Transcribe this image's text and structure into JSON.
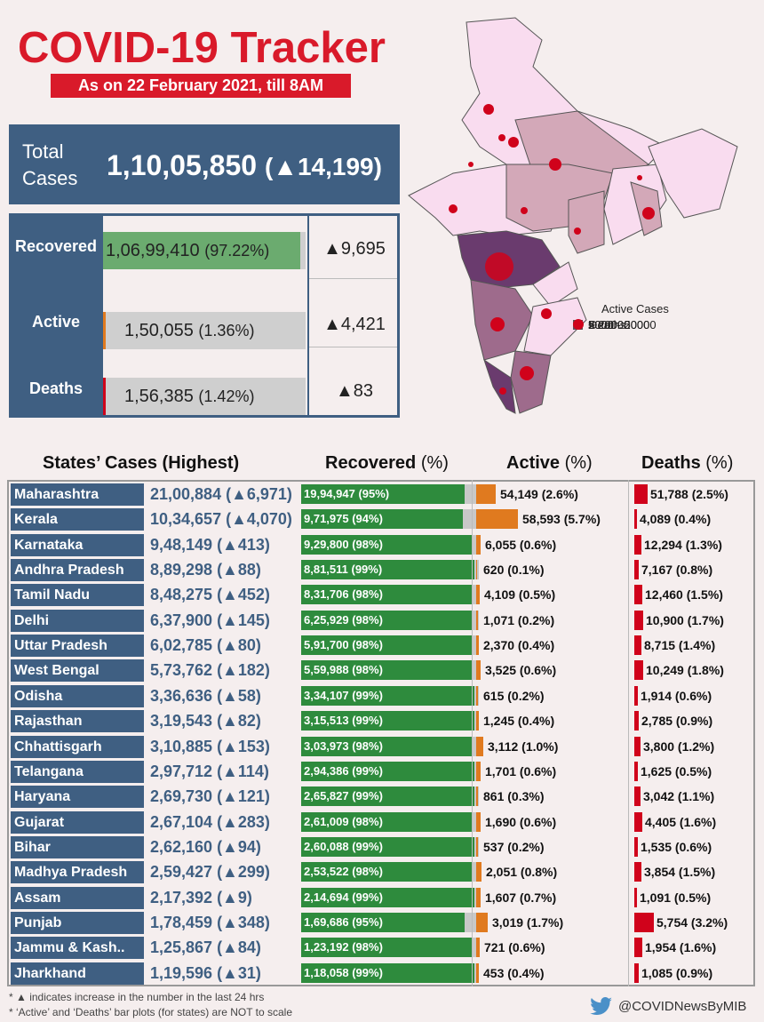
{
  "title": "COVID-19 Tracker",
  "date": "As on 22 February 2021, till 8AM",
  "total": {
    "label": "Total Cases",
    "value": "1,10,05,850",
    "delta": "(▲14,199)"
  },
  "summary": [
    {
      "label": "Recovered",
      "value": "1,06,99,410",
      "pct": "(97.22%)",
      "delta": "▲9,695",
      "color": "#6bab6f",
      "fill": 0.9722
    },
    {
      "label": "Active",
      "value": "1,50,055",
      "pct": "(1.36%)",
      "delta": "▲4,421",
      "color": "#e07a1f",
      "fill": 0.0136
    },
    {
      "label": "Deaths",
      "value": "1,56,385",
      "pct": "(1.42%)",
      "delta": "▲83",
      "color": "#d0021b",
      "fill": 0.0142
    }
  ],
  "legend": {
    "title": "Active Cases",
    "items": [
      {
        "label": "< 2000",
        "color": "#f9dcef"
      },
      {
        "label": "2000 - 5000",
        "color": "#d3a8b8"
      },
      {
        "label": "5000 - 20000",
        "color": "#9e6b8c"
      },
      {
        "label": "> 20000",
        "color": "#6a3b6e"
      }
    ],
    "deaths_label": "Deaths"
  },
  "headers": {
    "states": "States’ Cases (Highest)",
    "recovered": "Recovered",
    "active": "Active",
    "deaths": "Deaths",
    "pct": "(%)"
  },
  "states": [
    {
      "name": "Maharashtra",
      "cases": "21,00,884 (▲6,971)",
      "rec": "19,94,947 (95%)",
      "rec_pct": 95,
      "act": "54,149 (2.6%)",
      "act_w": 22,
      "dth": "51,788 (2.5%)",
      "dth_w": 15
    },
    {
      "name": "Kerala",
      "cases": "10,34,657 (▲4,070)",
      "rec": "9,71,975 (94%)",
      "rec_pct": 94,
      "act": "58,593 (5.7%)",
      "act_w": 47,
      "dth": "4,089 (0.4%)",
      "dth_w": 3
    },
    {
      "name": "Karnataka",
      "cases": "9,48,149 (▲413)",
      "rec": "9,29,800 (98%)",
      "rec_pct": 98,
      "act": "6,055 (0.6%)",
      "act_w": 5,
      "dth": "12,294 (1.3%)",
      "dth_w": 8
    },
    {
      "name": "Andhra Pradesh",
      "cases": "8,89,298 (▲88)",
      "rec": "8,81,511 (99%)",
      "rec_pct": 99,
      "act": "620 (0.1%)",
      "act_w": 1,
      "dth": "7,167 (0.8%)",
      "dth_w": 5
    },
    {
      "name": "Tamil Nadu",
      "cases": "8,48,275 (▲452)",
      "rec": "8,31,706 (98%)",
      "rec_pct": 98,
      "act": "4,109 (0.5%)",
      "act_w": 4,
      "dth": "12,460 (1.5%)",
      "dth_w": 9
    },
    {
      "name": "Delhi",
      "cases": "6,37,900 (▲145)",
      "rec": "6,25,929 (98%)",
      "rec_pct": 98,
      "act": "1,071 (0.2%)",
      "act_w": 2,
      "dth": "10,900 (1.7%)",
      "dth_w": 10
    },
    {
      "name": "Uttar Pradesh",
      "cases": "6,02,785 (▲80)",
      "rec": "5,91,700 (98%)",
      "rec_pct": 98,
      "act": "2,370 (0.4%)",
      "act_w": 3,
      "dth": "8,715 (1.4%)",
      "dth_w": 8
    },
    {
      "name": "West Bengal",
      "cases": "5,73,762 (▲182)",
      "rec": "5,59,988 (98%)",
      "rec_pct": 98,
      "act": "3,525 (0.6%)",
      "act_w": 5,
      "dth": "10,249 (1.8%)",
      "dth_w": 10
    },
    {
      "name": "Odisha",
      "cases": "3,36,636 (▲58)",
      "rec": "3,34,107 (99%)",
      "rec_pct": 99,
      "act": "615 (0.2%)",
      "act_w": 2,
      "dth": "1,914 (0.6%)",
      "dth_w": 4
    },
    {
      "name": "Rajasthan",
      "cases": "3,19,543 (▲82)",
      "rec": "3,15,513 (99%)",
      "rec_pct": 99,
      "act": "1,245 (0.4%)",
      "act_w": 3,
      "dth": "2,785 (0.9%)",
      "dth_w": 5
    },
    {
      "name": "Chhattisgarh",
      "cases": "3,10,885 (▲153)",
      "rec": "3,03,973 (98%)",
      "rec_pct": 98,
      "act": "3,112 (1.0%)",
      "act_w": 8,
      "dth": "3,800 (1.2%)",
      "dth_w": 7
    },
    {
      "name": "Telangana",
      "cases": "2,97,712 (▲114)",
      "rec": "2,94,386 (99%)",
      "rec_pct": 99,
      "act": "1,701 (0.6%)",
      "act_w": 5,
      "dth": "1,625 (0.5%)",
      "dth_w": 4
    },
    {
      "name": "Haryana",
      "cases": "2,69,730 (▲121)",
      "rec": "2,65,827 (99%)",
      "rec_pct": 99,
      "act": "861 (0.3%)",
      "act_w": 2,
      "dth": "3,042 (1.1%)",
      "dth_w": 7
    },
    {
      "name": "Gujarat",
      "cases": "2,67,104 (▲283)",
      "rec": "2,61,009 (98%)",
      "rec_pct": 98,
      "act": "1,690 (0.6%)",
      "act_w": 5,
      "dth": "4,405 (1.6%)",
      "dth_w": 9
    },
    {
      "name": "Bihar",
      "cases": "2,62,160 (▲94)",
      "rec": "2,60,088 (99%)",
      "rec_pct": 99,
      "act": "537 (0.2%)",
      "act_w": 2,
      "dth": "1,535 (0.6%)",
      "dth_w": 4
    },
    {
      "name": "Madhya Pradesh",
      "cases": "2,59,427 (▲299)",
      "rec": "2,53,522 (98%)",
      "rec_pct": 98,
      "act": "2,051 (0.8%)",
      "act_w": 6,
      "dth": "3,854 (1.5%)",
      "dth_w": 8
    },
    {
      "name": "Assam",
      "cases": "2,17,392 (▲9)",
      "rec": "2,14,694 (99%)",
      "rec_pct": 99,
      "act": "1,607 (0.7%)",
      "act_w": 5,
      "dth": "1,091 (0.5%)",
      "dth_w": 3
    },
    {
      "name": "Punjab",
      "cases": "1,78,459 (▲348)",
      "rec": "1,69,686 (95%)",
      "rec_pct": 95,
      "act": "3,019 (1.7%)",
      "act_w": 13,
      "dth": "5,754 (3.2%)",
      "dth_w": 22
    },
    {
      "name": "Jammu & Kash..",
      "cases": "1,25,867 (▲84)",
      "rec": "1,23,192 (98%)",
      "rec_pct": 98,
      "act": "721 (0.6%)",
      "act_w": 4,
      "dth": "1,954 (1.6%)",
      "dth_w": 9
    },
    {
      "name": "Jharkhand",
      "cases": "1,19,596 (▲31)",
      "rec": "1,18,058 (99%)",
      "rec_pct": 99,
      "act": "453 (0.4%)",
      "act_w": 3,
      "dth": "1,085 (0.9%)",
      "dth_w": 5
    }
  ],
  "footnotes": [
    "* ▲ indicates increase in the number in the last 24 hrs",
    "* ‘Active’ and ‘Deaths’ bar plots (for states) are NOT to scale"
  ],
  "twitter": "@COVIDNewsByMIB"
}
